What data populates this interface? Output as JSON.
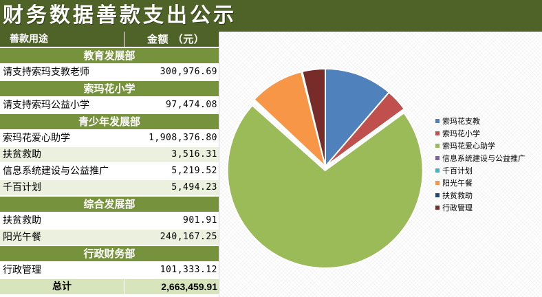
{
  "title": "财务数据善款支出公示",
  "table": {
    "header": {
      "purpose": "善款用途",
      "amount": "金额 （元）"
    },
    "sections": [
      {
        "name": "教育发展部",
        "items": [
          {
            "label": "请支持索玛支教老师",
            "amount": "300,976.69"
          }
        ]
      },
      {
        "name": "索玛花小学",
        "items": [
          {
            "label": "请支持索玛公益小学",
            "amount": "97,474.08"
          }
        ]
      },
      {
        "name": "青少年发展部",
        "items": [
          {
            "label": "索玛花爱心助学",
            "amount": "1,908,376.80"
          },
          {
            "label": "扶贫救助",
            "amount": "3,516.31"
          },
          {
            "label": "信息系统建设与公益推广",
            "amount": "5,219.52"
          },
          {
            "label": "千百计划",
            "amount": "5,494.23"
          }
        ]
      },
      {
        "name": "综合发展部",
        "items": [
          {
            "label": "扶贫救助",
            "amount": "901.91"
          },
          {
            "label": "阳光午餐",
            "amount": "240,167.25"
          }
        ]
      },
      {
        "name": "行政财务部",
        "items": [
          {
            "label": "行政管理",
            "amount": "101,333.12"
          }
        ]
      }
    ],
    "total": {
      "label": "总计",
      "amount": "2,663,459.91"
    }
  },
  "chart_data": {
    "type": "pie",
    "labels": [
      "索玛花支教",
      "索玛花小学",
      "索玛花爱心助学",
      "信息系统建设与公益推广",
      "千百计划",
      "阳光午餐",
      "扶贫救助",
      "行政管理"
    ],
    "values": [
      300976.69,
      97474.08,
      1908376.8,
      5219.52,
      5494.23,
      240167.25,
      4418.22,
      101333.12
    ],
    "colors": [
      "#4f81bd",
      "#c0504d",
      "#9bbb59",
      "#8064a2",
      "#4bacc6",
      "#f79646",
      "#1f497d",
      "#772c2a"
    ],
    "start": "12 o'clock, clockwise",
    "legend_position": "right"
  }
}
